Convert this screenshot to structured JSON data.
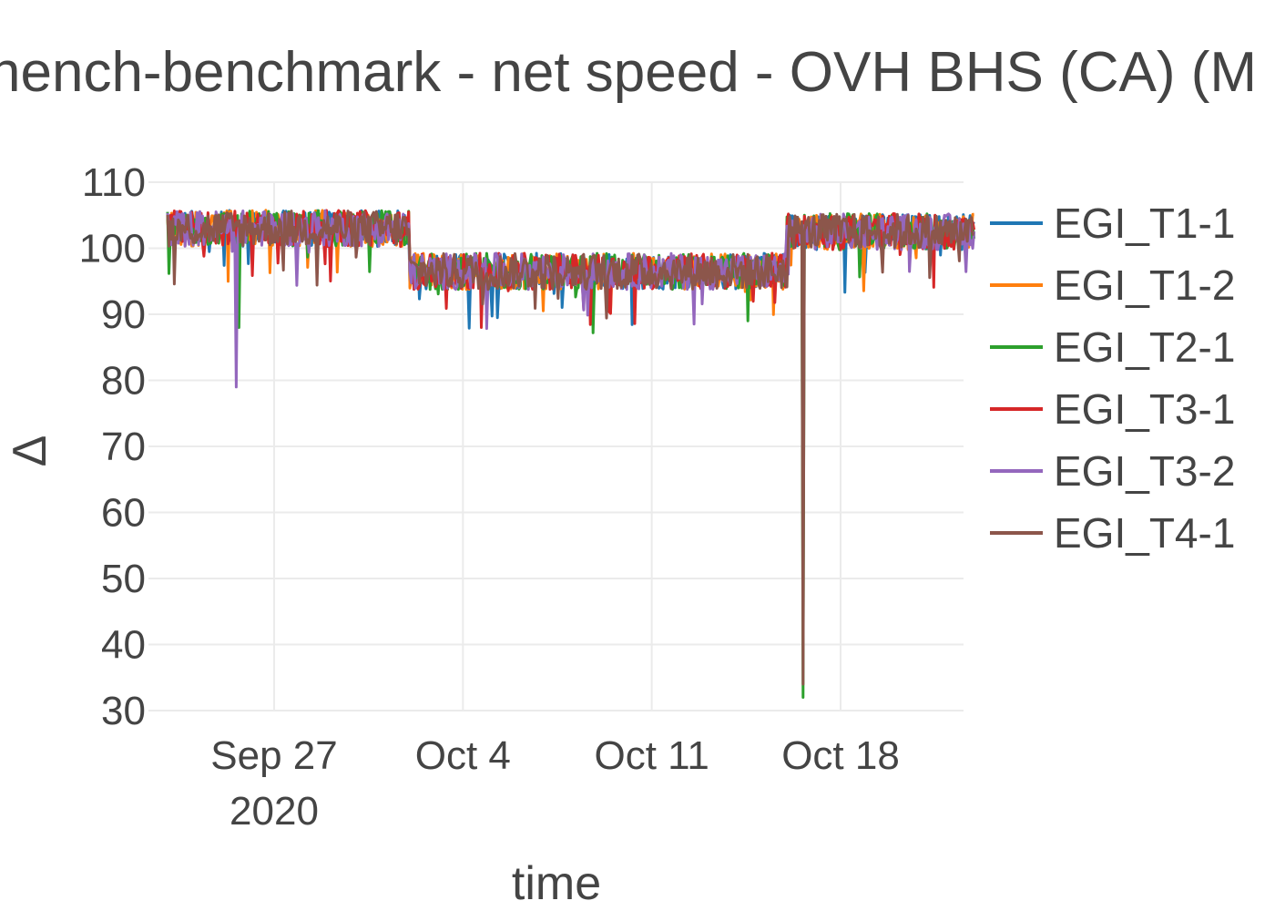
{
  "chart_data": {
    "type": "line",
    "title": "hench-benchmark - net speed - OVH BHS (CA) (M",
    "xlabel": "time",
    "ylabel": "Δ",
    "ylim": [
      30,
      110
    ],
    "yticks": [
      "30",
      "40",
      "50",
      "60",
      "70",
      "80",
      "90",
      "100",
      "110"
    ],
    "xlim": [
      "2020-09-23",
      "2020-10-23"
    ],
    "xticks": [
      {
        "date": "2020-09-27",
        "label": "Sep 27",
        "sublabel": "2020"
      },
      {
        "date": "2020-10-04",
        "label": "Oct 4",
        "sublabel": ""
      },
      {
        "date": "2020-10-11",
        "label": "Oct 11",
        "sublabel": ""
      },
      {
        "date": "2020-10-18",
        "label": "Oct 18",
        "sublabel": ""
      }
    ],
    "grid": true,
    "legend_position": "right",
    "series": [
      {
        "name": "EGI_T1-1",
        "color": "#1f77b4"
      },
      {
        "name": "EGI_T1-2",
        "color": "#ff7f0e"
      },
      {
        "name": "EGI_T2-1",
        "color": "#2ca02c"
      },
      {
        "name": "EGI_T3-1",
        "color": "#d62728"
      },
      {
        "name": "EGI_T3-2",
        "color": "#9467bd"
      },
      {
        "name": "EGI_T4-1",
        "color": "#8c564b"
      }
    ],
    "regimes": [
      {
        "from": "2020-09-23",
        "to": "2020-10-02",
        "level": 103
      },
      {
        "from": "2020-10-02",
        "to": "2020-10-16",
        "level": 96.5
      },
      {
        "from": "2020-10-16",
        "to": "2020-10-23",
        "level": 102.5
      }
    ],
    "spikes": [
      {
        "series": "EGI_T3-2",
        "date": "2020-09-25.6",
        "value": 79
      },
      {
        "series": "EGI_T2-1",
        "date": "2020-09-25.7",
        "value": 88
      },
      {
        "series": "EGI_T1-2",
        "date": "2020-09-25.3",
        "value": 95
      },
      {
        "series": "EGI_T2-1",
        "date": "2020-10-16.6",
        "value": 32
      },
      {
        "series": "EGI_T4-1",
        "date": "2020-10-16.6",
        "value": 34
      },
      {
        "series": "EGI_T3-1",
        "date": "2020-10-04.7",
        "value": 88
      }
    ]
  }
}
